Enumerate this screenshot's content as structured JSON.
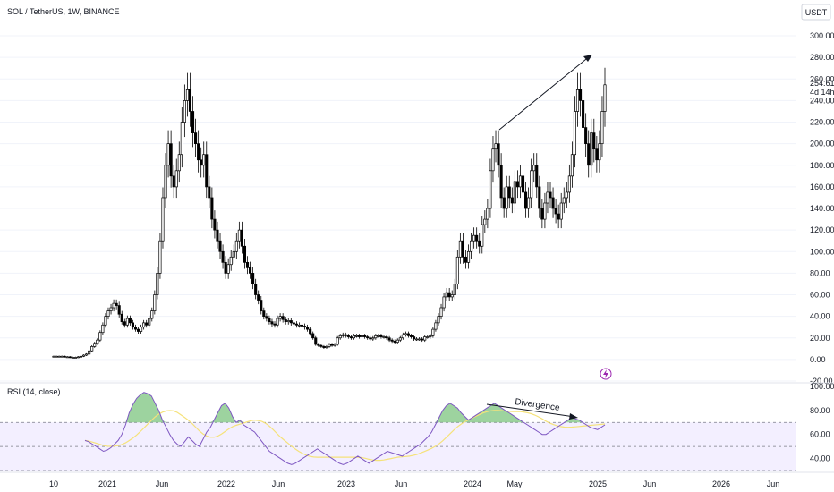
{
  "header": {
    "symbol_title": "SOL / TetherUS, 1W, BINANCE",
    "currency_button": "USDT"
  },
  "price_panel": {
    "y_ticks": [
      "-20.00",
      "0.00",
      "20.00",
      "40.00",
      "60.00",
      "80.00",
      "100.00",
      "120.00",
      "140.00",
      "160.00",
      "180.00",
      "200.00",
      "220.00",
      "240.00",
      "260.00",
      "280.00",
      "300.00"
    ],
    "last_price_label": "254.61",
    "countdown_label": "4d 14h",
    "price_range": [
      -20,
      310
    ]
  },
  "rsi_panel": {
    "title": "RSI (14, close)",
    "y_ticks": [
      "40.00",
      "60.00",
      "80.00",
      "100.00"
    ],
    "rsi_range": [
      30,
      100
    ],
    "upper_band": 70,
    "middle_band": 50,
    "lower_band": 30,
    "annotation": "Divergence"
  },
  "x_axis": {
    "ticks": [
      "10",
      "2021",
      "Jun",
      "2022",
      "Jun",
      "2023",
      "Jun",
      "2024",
      "May",
      "2025",
      "Jun",
      "2026",
      "Jun"
    ]
  },
  "colors": {
    "candle": "#000000",
    "rsi_line": "#7e57c2",
    "rsi_ma": "#f5e27a",
    "band_fill": "#f3efff",
    "overbought": "#4caf50",
    "oversold": "#ff9800",
    "alert_icon": "#9c27b0"
  },
  "alert_icon": "lightning-bolt-icon",
  "chart_data": {
    "type": "candlestick",
    "title": "SOL / TetherUS, 1W, BINANCE",
    "y_unit": "USDT",
    "x_start_label": "2020-12",
    "x_end_label": "2025-01",
    "close_series": [
      3,
      3,
      3,
      3,
      2.5,
      2.5,
      2,
      2,
      2,
      2.5,
      3,
      4,
      5,
      8,
      12,
      15,
      18,
      25,
      32,
      40,
      45,
      48,
      52,
      50,
      42,
      35,
      32,
      38,
      34,
      30,
      28,
      26,
      30,
      34,
      32,
      38,
      45,
      60,
      80,
      110,
      150,
      180,
      200,
      170,
      160,
      175,
      190,
      220,
      240,
      250,
      230,
      210,
      200,
      185,
      180,
      190,
      160,
      150,
      130,
      120,
      110,
      100,
      90,
      80,
      88,
      95,
      100,
      110,
      120,
      105,
      90,
      85,
      80,
      70,
      60,
      55,
      45,
      40,
      38,
      35,
      33,
      32,
      38,
      40,
      37,
      35,
      36,
      34,
      33,
      32,
      32,
      31,
      30,
      28,
      24,
      20,
      14,
      13,
      12,
      11,
      12,
      14,
      13,
      14,
      20,
      22,
      23,
      22,
      21,
      20,
      22,
      22,
      21,
      22,
      21,
      20,
      19,
      20,
      22,
      22,
      21,
      21,
      20,
      18,
      17,
      16,
      18,
      20,
      23,
      24,
      22,
      21,
      19,
      19,
      19,
      18,
      21,
      21,
      22,
      28,
      34,
      40,
      48,
      58,
      62,
      58,
      60,
      70,
      95,
      110,
      95,
      90,
      100,
      110,
      115,
      110,
      105,
      125,
      130,
      140,
      175,
      195,
      200,
      180,
      150,
      140,
      160,
      150,
      145,
      165,
      160,
      170,
      155,
      140,
      150,
      175,
      180,
      160,
      140,
      130,
      145,
      155,
      150,
      140,
      135,
      130,
      145,
      150,
      155,
      170,
      190,
      230,
      250,
      240,
      215,
      200,
      180,
      210,
      195,
      185,
      200,
      230,
      254.61
    ],
    "annotations": [
      {
        "type": "arrow",
        "from_price": 205,
        "to_price": 282
      },
      {
        "type": "arrow_rsi",
        "label": "Divergence",
        "from_rsi": 90,
        "to_rsi": 77
      }
    ],
    "rsi_series": [
      55,
      54,
      52,
      50,
      48,
      46,
      47,
      49,
      52,
      55,
      60,
      68,
      78,
      85,
      90,
      93,
      95,
      94,
      92,
      86,
      80,
      72,
      66,
      60,
      55,
      52,
      50,
      54,
      58,
      55,
      52,
      50,
      56,
      62,
      66,
      72,
      78,
      84,
      86,
      82,
      75,
      70,
      72,
      68,
      66,
      64,
      62,
      58,
      54,
      50,
      46,
      44,
      42,
      40,
      38,
      36,
      35,
      36,
      38,
      40,
      42,
      44,
      46,
      48,
      46,
      44,
      42,
      40,
      38,
      36,
      35,
      36,
      38,
      40,
      42,
      40,
      38,
      36,
      38,
      40,
      42,
      44,
      46,
      45,
      44,
      43,
      42,
      44,
      46,
      48,
      50,
      52,
      55,
      58,
      62,
      68,
      74,
      80,
      84,
      86,
      84,
      82,
      78,
      75,
      72,
      74,
      76,
      78,
      80,
      82,
      84,
      86,
      84,
      82,
      80,
      78,
      76,
      74,
      72,
      70,
      68,
      66,
      64,
      62,
      60,
      60,
      62,
      64,
      66,
      68,
      70,
      72,
      74,
      73,
      72,
      70,
      68,
      66,
      65,
      64,
      66,
      68
    ]
  }
}
